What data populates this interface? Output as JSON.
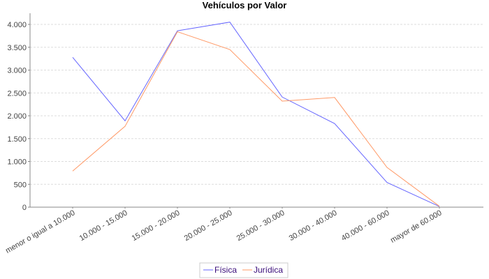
{
  "chart_data": {
    "type": "line",
    "title": "Vehículos por Valor",
    "xlabel": "",
    "ylabel": "",
    "categories": [
      "menor o igual a 10.000",
      "10.000 - 15.000",
      "15.000 - 20.000",
      "20.000 - 25.000",
      "25.000 - 30.000",
      "30.000 - 40.000",
      "40.000 - 60.000",
      "mayor de 60.000"
    ],
    "ylim": [
      0,
      4250
    ],
    "yticks": [
      0,
      500,
      1000,
      1500,
      2000,
      2500,
      3000,
      3500,
      4000
    ],
    "ytick_labels": [
      "0",
      "500",
      "1.000",
      "1.500",
      "2.000",
      "2.500",
      "3.000",
      "3.500",
      "4.000"
    ],
    "grid": true,
    "legend_position": "bottom",
    "series": [
      {
        "name": "Física",
        "color": "#6666ff",
        "values": [
          3280,
          1890,
          3860,
          4050,
          2410,
          1830,
          540,
          15
        ]
      },
      {
        "name": "Jurídica",
        "color": "#ff9966",
        "values": [
          790,
          1770,
          3840,
          3450,
          2320,
          2400,
          870,
          20
        ]
      }
    ]
  }
}
